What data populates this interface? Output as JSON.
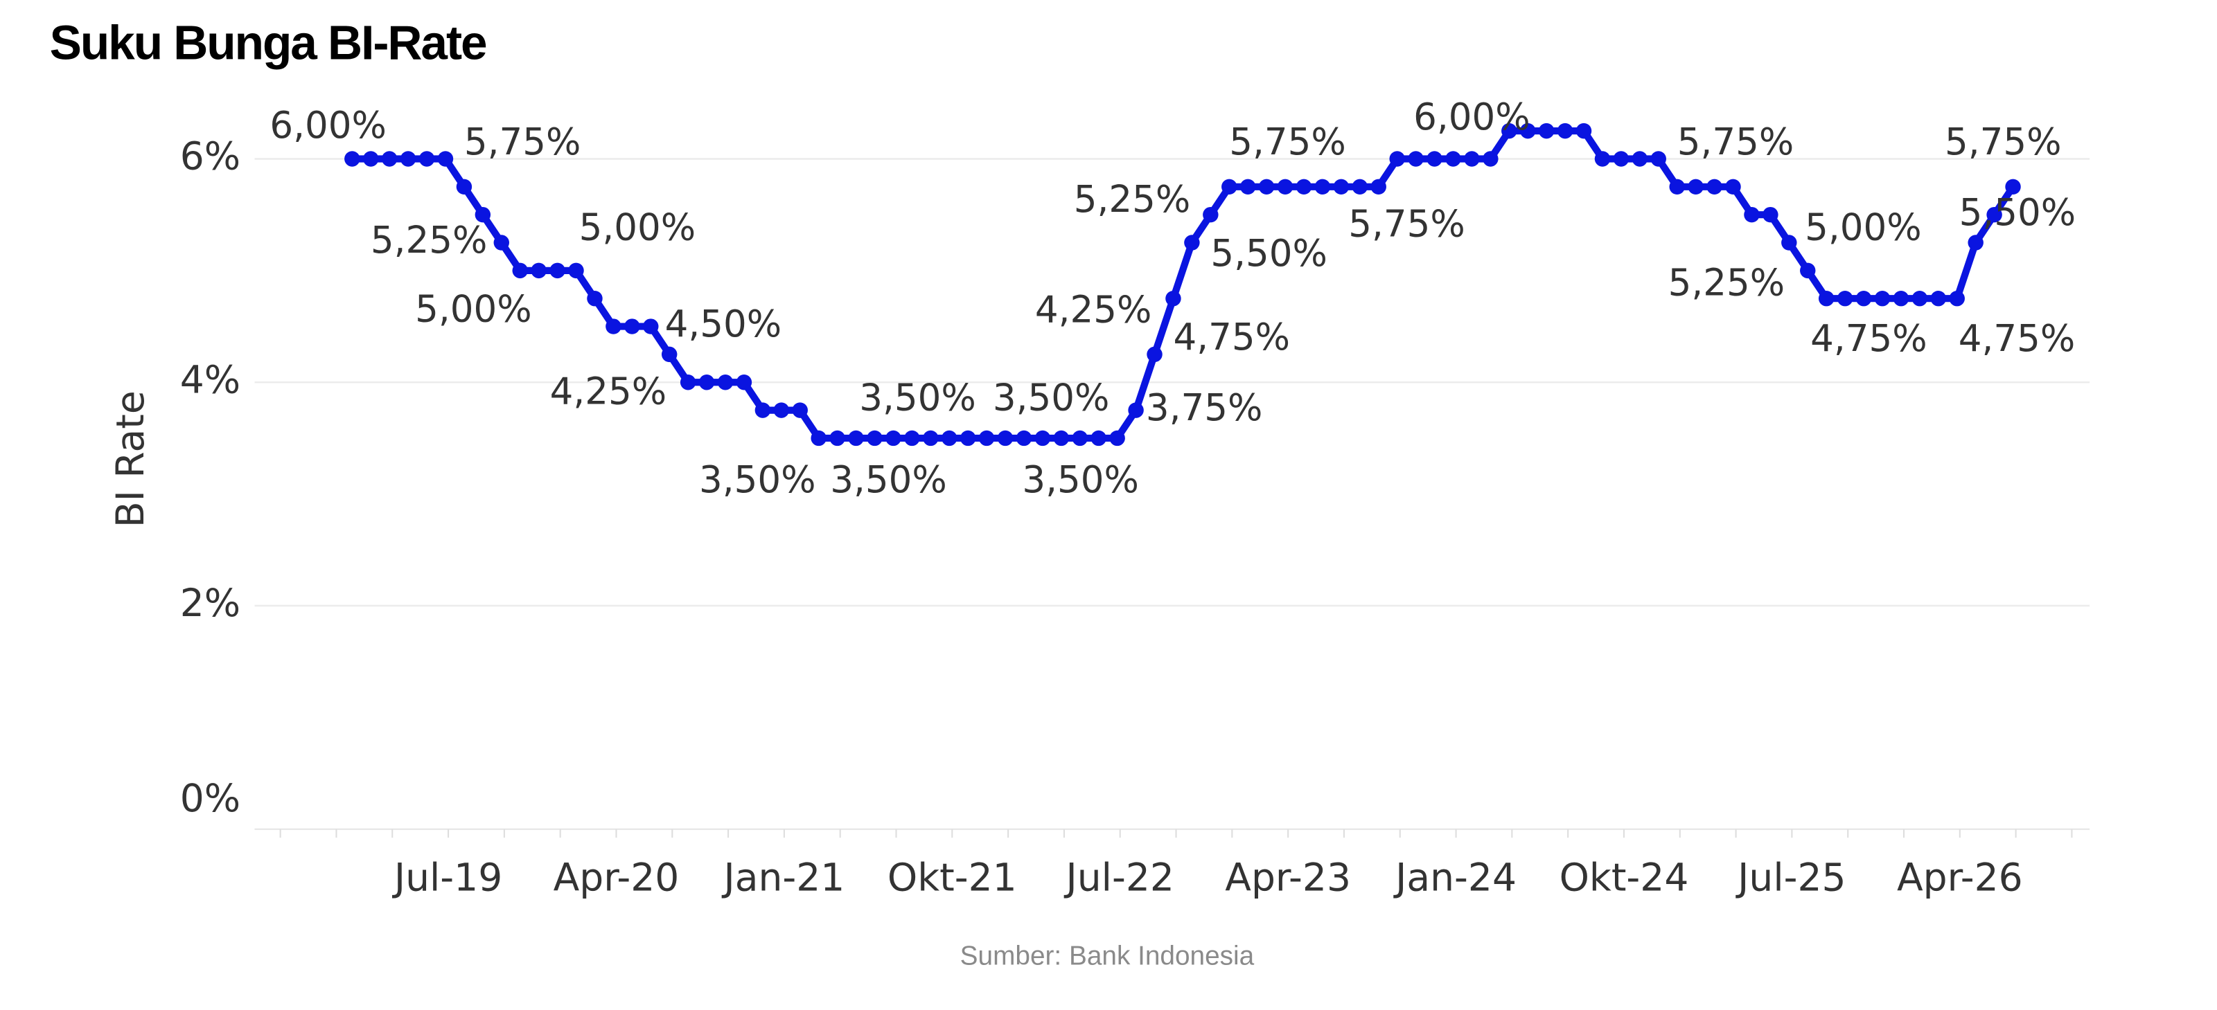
{
  "chart_data": {
    "type": "line",
    "title": "Suku Bunga BI-Rate",
    "y_axis_label": "BI Rate",
    "source": "Sumber: Bank Indonesia",
    "categories": [
      null,
      null,
      null,
      null,
      null,
      "Jul-19",
      null,
      null,
      null,
      null,
      null,
      null,
      null,
      null,
      "Apr-20",
      null,
      null,
      null,
      null,
      null,
      null,
      null,
      null,
      "Jan-21",
      null,
      null,
      null,
      null,
      null,
      null,
      null,
      null,
      "Okt-21",
      null,
      null,
      null,
      null,
      null,
      null,
      null,
      null,
      "Jul-22",
      null,
      null,
      null,
      null,
      null,
      null,
      null,
      null,
      "Apr-23",
      null,
      null,
      null,
      null,
      null,
      null,
      null,
      null,
      "Jan-24",
      null,
      null,
      null,
      null,
      null,
      null,
      null,
      null,
      "Okt-24",
      null,
      null,
      null,
      null,
      null,
      null,
      null,
      null,
      "Jul-25",
      null,
      null,
      null,
      null,
      null,
      null,
      null,
      null,
      "Apr-26",
      null,
      null,
      null
    ],
    "series": [
      {
        "name": "BI Rate",
        "color": "#0a14e0",
        "values": [
          6,
          6,
          6,
          6,
          6,
          6,
          5.75,
          5.5,
          5.25,
          5,
          5,
          5,
          5,
          4.75,
          4.5,
          4.5,
          4.5,
          4.25,
          4,
          4,
          4,
          4,
          3.75,
          3.75,
          3.75,
          3.5,
          3.5,
          3.5,
          3.5,
          3.5,
          3.5,
          3.5,
          3.5,
          3.5,
          3.5,
          3.5,
          3.5,
          3.5,
          3.5,
          3.5,
          3.5,
          3.5,
          3.75,
          4.25,
          4.75,
          5.25,
          5.5,
          5.75,
          5.75,
          5.75,
          5.75,
          5.75,
          5.75,
          5.75,
          5.75,
          5.75,
          6,
          6,
          6,
          6,
          6,
          6,
          6.25,
          6.25,
          6.25,
          6.25,
          6.25,
          6,
          6,
          6,
          6,
          5.75,
          5.75,
          5.75,
          5.75,
          5.5,
          5.5,
          5.25,
          5,
          4.75,
          4.75,
          4.75,
          4.75,
          4.75,
          4.75,
          4.75,
          4.75,
          5.25,
          5.5,
          5.75
        ],
        "value_labels": [
          "6,00%",
          null,
          null,
          null,
          null,
          null,
          "5,75%",
          null,
          "5,25%",
          "5,00%",
          null,
          null,
          "5,00%",
          null,
          null,
          null,
          "4,50%",
          "4,25%",
          null,
          null,
          null,
          null,
          null,
          null,
          null,
          "3,50%",
          null,
          "3,50%",
          null,
          null,
          "3,50%",
          null,
          null,
          null,
          null,
          null,
          null,
          "3,50%",
          null,
          null,
          null,
          "3,50%",
          "3,75%",
          "4,25%",
          "4,75%",
          "5,25%",
          "5,50%",
          "5,75%",
          null,
          null,
          null,
          null,
          null,
          null,
          null,
          "5,75%",
          null,
          null,
          null,
          null,
          "6,00%",
          null,
          null,
          null,
          null,
          null,
          null,
          null,
          null,
          null,
          null,
          "5,75%",
          null,
          null,
          null,
          null,
          null,
          "5,25%",
          "5,00%",
          "4,75%",
          null,
          null,
          null,
          null,
          null,
          null,
          "4,75%",
          null,
          "5,50%",
          "5,75%"
        ]
      }
    ],
    "ylim": [
      0,
      6.6
    ],
    "yticks": [
      {
        "value": 0,
        "label": "0%"
      },
      {
        "value": 2,
        "label": "2%"
      },
      {
        "value": 4,
        "label": "4%"
      },
      {
        "value": 6,
        "label": "6%"
      }
    ],
    "grid": true
  }
}
